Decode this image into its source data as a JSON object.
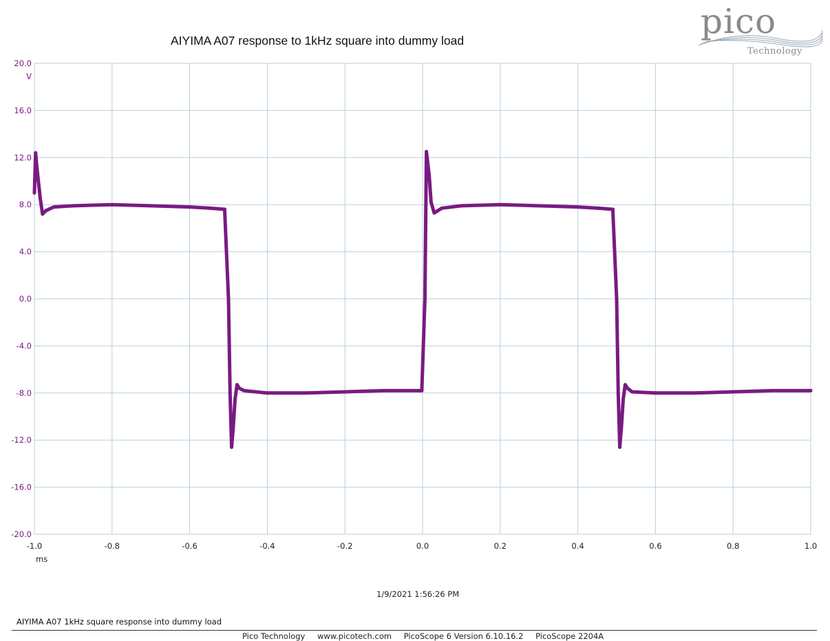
{
  "chart_data": {
    "type": "line",
    "title": "AIYIMA A07 response to 1kHz square into dummy load",
    "xlabel": "",
    "ylabel": "",
    "x_unit": "ms",
    "y_unit": "V",
    "xlim": [
      -1.0,
      1.0
    ],
    "ylim": [
      -20.0,
      20.0
    ],
    "x_ticks": [
      "-1.0",
      "-0.8",
      "-0.6",
      "-0.4",
      "-0.2",
      "0.0",
      "0.2",
      "0.4",
      "0.6",
      "0.8",
      "1.0"
    ],
    "y_ticks": [
      "20.0",
      "16.0",
      "12.0",
      "8.0",
      "4.0",
      "0.0",
      "-4.0",
      "-8.0",
      "-12.0",
      "-16.0",
      "-20.0"
    ],
    "grid": true,
    "legend": "none",
    "series": [
      {
        "color": "#7a1a82",
        "x": [
          -1.0,
          -0.997,
          -0.993,
          -0.985,
          -0.979,
          -0.97,
          -0.95,
          -0.9,
          -0.8,
          -0.7,
          -0.6,
          -0.55,
          -0.51,
          -0.5,
          -0.496,
          -0.492,
          -0.488,
          -0.483,
          -0.478,
          -0.472,
          -0.46,
          -0.4,
          -0.3,
          -0.2,
          -0.1,
          -0.01,
          -0.002,
          0.006,
          0.01,
          0.017,
          0.022,
          0.03,
          0.05,
          0.1,
          0.2,
          0.3,
          0.4,
          0.45,
          0.49,
          0.5,
          0.504,
          0.508,
          0.512,
          0.517,
          0.522,
          0.528,
          0.54,
          0.6,
          0.7,
          0.8,
          0.9,
          1.0
        ],
        "y": [
          9.0,
          12.4,
          11.0,
          8.5,
          7.2,
          7.5,
          7.8,
          7.9,
          8.0,
          7.9,
          7.8,
          7.7,
          7.6,
          0.0,
          -8.0,
          -12.6,
          -11.0,
          -8.5,
          -7.3,
          -7.6,
          -7.8,
          -8.0,
          -8.0,
          -7.9,
          -7.8,
          -7.8,
          -7.8,
          0.0,
          12.5,
          10.5,
          8.2,
          7.3,
          7.7,
          7.9,
          8.0,
          7.9,
          7.8,
          7.7,
          7.6,
          0.0,
          -8.0,
          -12.6,
          -11.0,
          -8.5,
          -7.3,
          -7.6,
          -7.9,
          -8.0,
          -8.0,
          -7.9,
          -7.8,
          -7.8
        ]
      }
    ]
  },
  "timestamp": "1/9/2021 1:56:26 PM",
  "caption": "AIYIMA A07 1kHz square response into dummy load",
  "footer": {
    "company": "Pico Technology",
    "website": "www.picotech.com",
    "version": "PicoScope 6 Version 6.10.16.2",
    "device": "PicoScope 2204A"
  },
  "logo": {
    "name": "pico",
    "subtitle": "Technology"
  },
  "colors": {
    "trace": "#7a1a82",
    "grid": "#b7cfdd"
  }
}
